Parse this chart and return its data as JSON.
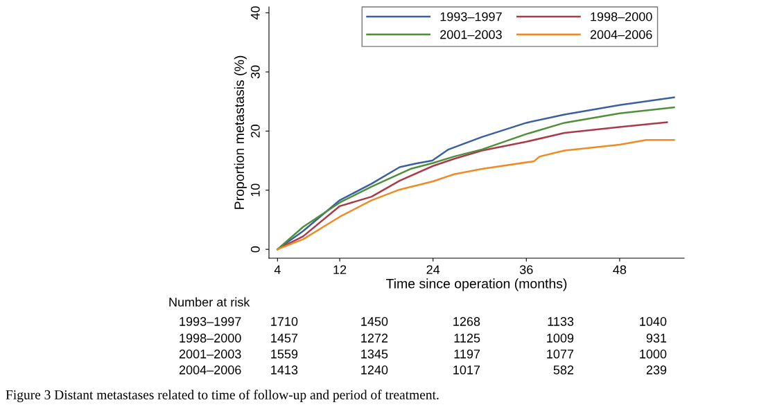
{
  "chart_data": {
    "type": "line",
    "xlabel": "Time since operation (months)",
    "ylabel": "Proportion metastasis (%)",
    "xlim": [
      2.9,
      56.3
    ],
    "ylim": [
      -1.5,
      41
    ],
    "xticks": [
      4,
      12,
      24,
      36,
      48
    ],
    "yticks": [
      0,
      10,
      20,
      30,
      40
    ],
    "grid": false,
    "legend": "top",
    "marker": "none",
    "line_style": "solid",
    "series": [
      {
        "name": "1993–1997",
        "color": "#3a5fa0",
        "x": [
          4,
          7.3,
          12,
          16.1,
          19.7,
          21.8,
          23.9,
          26,
          30.3,
          36,
          40.9,
          48,
          55
        ],
        "values": [
          0,
          3.1,
          8.3,
          11.1,
          13.9,
          14.5,
          15.0,
          16.9,
          19.0,
          21.4,
          22.8,
          24.4,
          25.7
        ]
      },
      {
        "name": "1998–2000",
        "color": "#a83a4a",
        "x": [
          4,
          7.3,
          12,
          16.1,
          19.7,
          24,
          26.7,
          30.3,
          36,
          40.9,
          48,
          54.1
        ],
        "values": [
          0,
          2.2,
          7.3,
          8.9,
          11.6,
          14.1,
          15.3,
          16.7,
          18.2,
          19.7,
          20.7,
          21.5
        ]
      },
      {
        "name": "2001–2003",
        "color": "#4f8f3a",
        "x": [
          4,
          7.3,
          12,
          16.1,
          21.1,
          24,
          26.7,
          30.3,
          36,
          40.9,
          48,
          55
        ],
        "values": [
          0,
          3.8,
          7.9,
          10.6,
          13.6,
          14.6,
          15.7,
          16.9,
          19.5,
          21.4,
          23.0,
          24.0
        ]
      },
      {
        "name": "2004–2006",
        "color": "#f08a24",
        "x": [
          4,
          7.3,
          12,
          16.1,
          19.7,
          24,
          26.7,
          30.3,
          37,
          37.7,
          40.9,
          48,
          51.4,
          55
        ],
        "values": [
          0,
          1.7,
          5.5,
          8.3,
          10.1,
          11.5,
          12.7,
          13.6,
          14.9,
          15.7,
          16.7,
          17.7,
          18.5,
          18.5
        ]
      }
    ],
    "annotations": [
      "Number at risk",
      "1993–1997",
      "1710",
      "1450",
      "1268",
      "1133",
      "1040",
      "1998–2000",
      "1457",
      "1272",
      "1125",
      "1009",
      "931",
      "2001–2003",
      "1559",
      "1345",
      "1197",
      "1077",
      "1000",
      "2004–2006",
      "1413",
      "1240",
      "1017",
      "582",
      "239",
      "Figure 3 Distant metastases related to time of follow-up and period of treatment."
    ]
  }
}
